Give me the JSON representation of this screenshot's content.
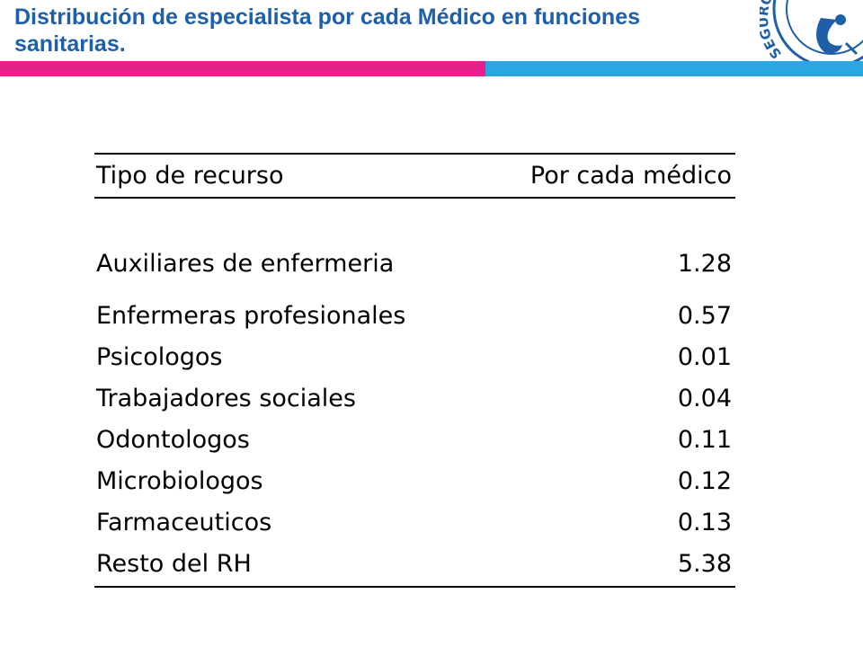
{
  "slide": {
    "title": "Distribución de especialista por cada Médico en funciones sanitarias.",
    "logo_text": "SEGURO SOCIAL"
  },
  "colors": {
    "title": "#1f5fa8",
    "accent_pink": "#e8208b",
    "accent_blue": "#2aa7e0"
  },
  "chart_data": {
    "type": "table",
    "columns": [
      "Tipo de recurso",
      "Por cada médico"
    ],
    "rows": [
      {
        "label": "Auxiliares de enfermeria",
        "value": "1.28"
      },
      {
        "label": "Enfermeras profesionales",
        "value": "0.57"
      },
      {
        "label": "Psicologos",
        "value": "0.01"
      },
      {
        "label": "Trabajadores sociales",
        "value": "0.04"
      },
      {
        "label": "Odontologos",
        "value": "0.11"
      },
      {
        "label": "Microbiologos",
        "value": "0.12"
      },
      {
        "label": "Farmaceuticos",
        "value": "0.13"
      },
      {
        "label": "Resto del RH",
        "value": "5.38"
      }
    ]
  }
}
